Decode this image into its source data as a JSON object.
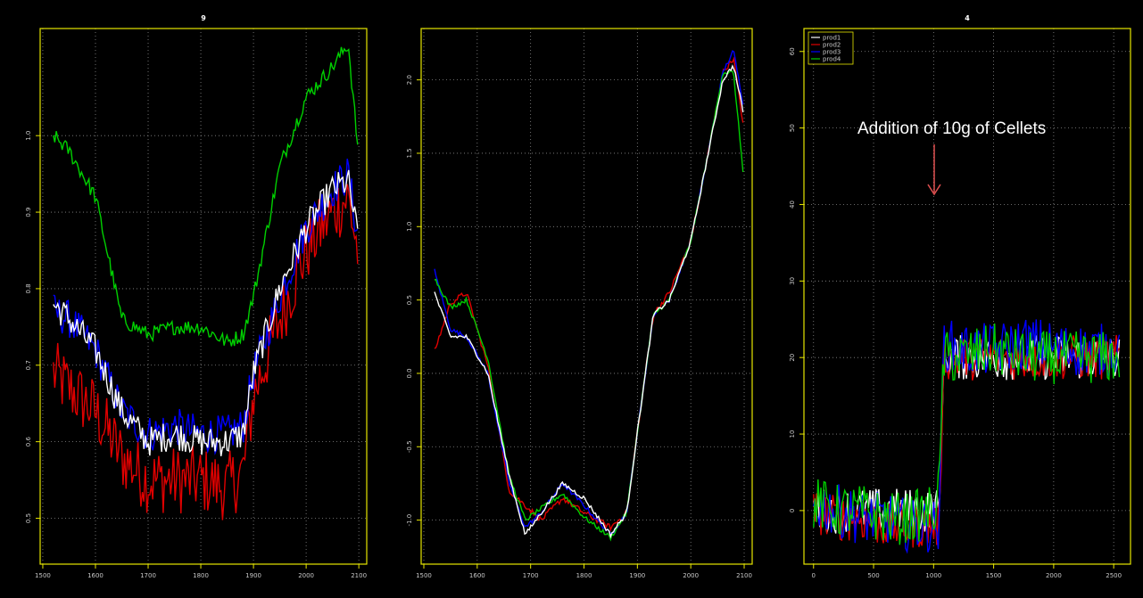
{
  "colors": {
    "background": "#000000",
    "frame": "#e6e600",
    "grid": "#8a8a8a",
    "prod1": "#ffffff",
    "prod2": "#e00000",
    "prod3": "#0000ff",
    "prod4": "#00d000"
  },
  "annotation": {
    "text": "Addition of 10g of Cellets",
    "arrow_color": "#e05050"
  },
  "chart_data": [
    {
      "type": "line",
      "title": "9",
      "xlabel": "",
      "ylabel": "",
      "grid": true,
      "xlim": [
        1495,
        2115
      ],
      "ylim": [
        0.44,
        1.14
      ],
      "xticks": [
        1500,
        1600,
        1700,
        1800,
        1900,
        2000,
        2100
      ],
      "yticks": [
        0.5,
        0.6,
        0.7,
        0.8,
        0.9,
        1.0
      ],
      "ytick_labels": [
        "0.5",
        "0.6",
        "0.7",
        "0.8",
        "0.9",
        "1.0"
      ],
      "series": [
        {
          "color": "#e00000",
          "noise": 0.045,
          "x": [
            1520,
            1550,
            1600,
            1650,
            1700,
            1750,
            1800,
            1850,
            1880,
            1900,
            1950,
            2000,
            2050,
            2080,
            2100
          ],
          "y": [
            0.69,
            0.67,
            0.64,
            0.58,
            0.55,
            0.55,
            0.55,
            0.54,
            0.56,
            0.66,
            0.76,
            0.85,
            0.9,
            0.92,
            0.84
          ]
        },
        {
          "color": "#0000ff",
          "noise": 0.025,
          "x": [
            1520,
            1550,
            1600,
            1650,
            1700,
            1750,
            1800,
            1850,
            1880,
            1900,
            1950,
            2000,
            2050,
            2080,
            2100
          ],
          "y": [
            0.77,
            0.76,
            0.72,
            0.64,
            0.61,
            0.62,
            0.61,
            0.61,
            0.62,
            0.69,
            0.79,
            0.88,
            0.93,
            0.95,
            0.86
          ]
        },
        {
          "color": "#ffffff",
          "noise": 0.02,
          "x": [
            1520,
            1550,
            1600,
            1650,
            1700,
            1750,
            1800,
            1850,
            1880,
            1900,
            1950,
            2000,
            2050,
            2080,
            2100
          ],
          "y": [
            0.78,
            0.76,
            0.72,
            0.64,
            0.6,
            0.61,
            0.6,
            0.6,
            0.61,
            0.69,
            0.8,
            0.88,
            0.93,
            0.94,
            0.86
          ]
        },
        {
          "color": "#00d000",
          "noise": 0.01,
          "x": [
            1520,
            1550,
            1600,
            1650,
            1700,
            1750,
            1800,
            1850,
            1880,
            1900,
            1950,
            2000,
            2050,
            2080,
            2100
          ],
          "y": [
            1.0,
            0.98,
            0.92,
            0.76,
            0.74,
            0.75,
            0.75,
            0.73,
            0.74,
            0.79,
            0.96,
            1.05,
            1.09,
            1.12,
            0.97
          ]
        }
      ]
    },
    {
      "type": "line",
      "title": "",
      "xlabel": "",
      "ylabel": "",
      "grid": true,
      "xlim": [
        1495,
        2115
      ],
      "ylim": [
        -1.3,
        2.35
      ],
      "xticks": [
        1500,
        1600,
        1700,
        1800,
        1900,
        2000,
        2100
      ],
      "yticks": [
        -1.0,
        -0.5,
        0.0,
        0.5,
        1.0,
        1.5,
        2.0
      ],
      "ytick_labels": [
        "-1.0",
        "-0.5",
        "0.0",
        "0.5",
        "1.0",
        "1.5",
        "2.0"
      ],
      "series": [
        {
          "color": "#e00000",
          "noise": 0.02,
          "x": [
            1520,
            1550,
            1580,
            1620,
            1660,
            1690,
            1720,
            1760,
            1800,
            1850,
            1880,
            1900,
            1930,
            1960,
            2000,
            2030,
            2060,
            2080,
            2100
          ],
          "y": [
            0.15,
            0.48,
            0.55,
            0.05,
            -0.8,
            -0.9,
            -1.0,
            -0.85,
            -0.95,
            -1.05,
            -0.95,
            -0.4,
            0.4,
            0.55,
            0.9,
            1.45,
            2.05,
            2.15,
            1.65
          ]
        },
        {
          "color": "#0000ff",
          "noise": 0.015,
          "x": [
            1520,
            1550,
            1580,
            1620,
            1660,
            1690,
            1720,
            1760,
            1800,
            1850,
            1880,
            1900,
            1930,
            1960,
            2000,
            2030,
            2060,
            2080,
            2100
          ],
          "y": [
            0.7,
            0.3,
            0.25,
            0.0,
            -0.75,
            -1.05,
            -0.95,
            -0.75,
            -0.9,
            -1.1,
            -0.95,
            -0.4,
            0.4,
            0.5,
            0.9,
            1.45,
            2.05,
            2.2,
            1.8
          ]
        },
        {
          "color": "#00d000",
          "noise": 0.015,
          "x": [
            1520,
            1550,
            1580,
            1620,
            1660,
            1690,
            1720,
            1760,
            1800,
            1850,
            1880,
            1900,
            1930,
            1960,
            2000,
            2030,
            2060,
            2080,
            2100
          ],
          "y": [
            0.65,
            0.45,
            0.5,
            0.1,
            -0.7,
            -1.0,
            -0.92,
            -0.82,
            -0.98,
            -1.12,
            -0.95,
            -0.4,
            0.4,
            0.5,
            0.9,
            1.45,
            2.05,
            2.05,
            1.3
          ]
        },
        {
          "color": "#ffffff",
          "noise": 0.015,
          "x": [
            1520,
            1550,
            1580,
            1620,
            1660,
            1690,
            1720,
            1760,
            1800,
            1850,
            1880,
            1900,
            1930,
            1960,
            2000,
            2030,
            2060,
            2080,
            2100
          ],
          "y": [
            0.55,
            0.25,
            0.25,
            0.0,
            -0.7,
            -1.1,
            -0.95,
            -0.75,
            -0.85,
            -1.1,
            -0.95,
            -0.4,
            0.4,
            0.5,
            0.9,
            1.45,
            2.0,
            2.1,
            1.75
          ]
        }
      ]
    },
    {
      "type": "line",
      "title": "4",
      "xlabel": "",
      "ylabel": "",
      "grid": true,
      "legend": "top-left",
      "xlim": [
        -80,
        2640
      ],
      "ylim": [
        -7,
        63
      ],
      "xticks": [
        0,
        500,
        1000,
        1500,
        2000,
        2500
      ],
      "yticks": [
        0,
        10,
        20,
        30,
        40,
        50,
        60
      ],
      "ytick_labels": [
        "0",
        "10",
        "20",
        "30",
        "40",
        "50",
        "60"
      ],
      "series": [
        {
          "name": "prod1",
          "color": "#ffffff",
          "noise": 3.0,
          "x": [
            0,
            200,
            400,
            600,
            800,
            1000,
            1050,
            1080,
            1200,
            1500,
            1800,
            2100,
            2400,
            2550
          ],
          "y": [
            0,
            0,
            0,
            0,
            0,
            0,
            0,
            20,
            20,
            20,
            20,
            20,
            20,
            20
          ]
        },
        {
          "name": "prod2",
          "color": "#e00000",
          "noise": 3.0,
          "x": [
            0,
            200,
            400,
            600,
            800,
            1000,
            1050,
            1080,
            1200,
            1500,
            1800,
            2100,
            2400,
            2550
          ],
          "y": [
            0,
            -1,
            -1,
            -2,
            -2,
            -2,
            -2,
            20,
            20,
            20,
            20,
            20,
            20,
            20
          ]
        },
        {
          "name": "prod3",
          "color": "#0000ff",
          "noise": 3.5,
          "x": [
            0,
            200,
            400,
            600,
            800,
            1000,
            1050,
            1080,
            1200,
            1500,
            1800,
            2100,
            2400,
            2550
          ],
          "y": [
            1,
            0,
            -1,
            -1,
            -2,
            -2,
            -2,
            22,
            21,
            21,
            22,
            21,
            21,
            21
          ]
        },
        {
          "name": "prod4",
          "color": "#00d000",
          "noise": 3.5,
          "x": [
            0,
            200,
            400,
            600,
            800,
            1000,
            1050,
            1080,
            1200,
            1500,
            1800,
            2100,
            2400,
            2550
          ],
          "y": [
            1,
            0,
            0,
            -1,
            -1,
            0,
            3,
            20,
            20,
            21,
            20,
            20,
            20,
            20
          ]
        }
      ]
    }
  ]
}
